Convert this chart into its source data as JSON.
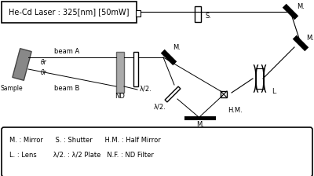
{
  "title": "He-Cd Laser : 325[nm] [50mW]",
  "bg_color": "#ffffff",
  "legend_line1": "M. : Mirror      S. : Shutter      H.M. : Half Mirror",
  "legend_line2": "L. : Lens        λ/2. : λ/2 Plate   N.F. : ND Filter",
  "beam_A_label": "beam A",
  "beam_B_label": "beam B",
  "theta_r1": "θr",
  "theta_r2": "θr",
  "sample_label": "Sample",
  "ND_label": "ND",
  "lambda2_upper_label": "λ/2.",
  "lambda2_lower_label": "λ/2.",
  "M_upper_label": "M.",
  "M_lower_label": "M.",
  "M_top_right_label": "M.",
  "M_right_label": "M.",
  "S_label": "S.",
  "HM_label": "H.M.",
  "L_label": "L."
}
